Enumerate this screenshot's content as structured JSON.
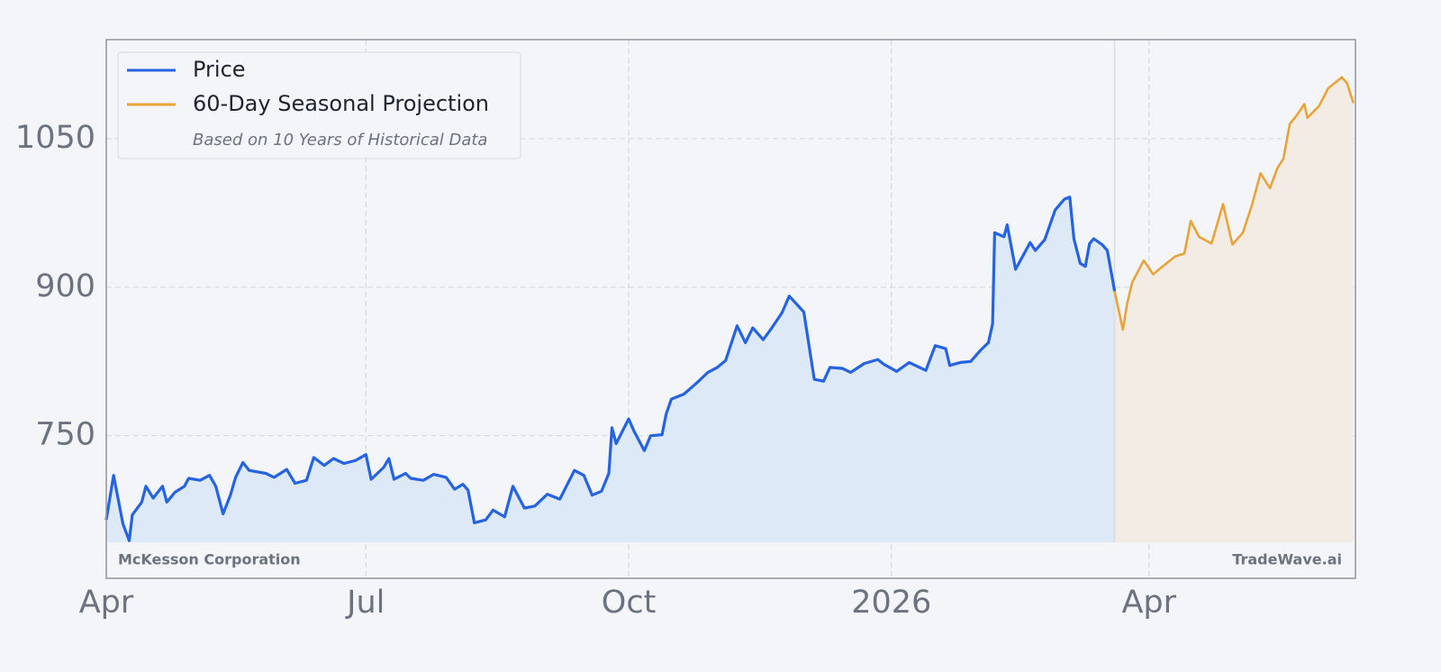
{
  "chart_data": {
    "type": "line",
    "legend": "upper left",
    "legend_note": "Based on 10 Years of Historical Data",
    "company": "McKesson Corporation",
    "watermark": "TradeWave.ai",
    "grid": true,
    "xlim": [
      2025.247,
      2026.445
    ],
    "xticks": [
      {
        "value": 2025.247,
        "label": "Apr"
      },
      {
        "value": 2025.496,
        "label": "Jul"
      },
      {
        "value": 2025.748,
        "label": "Oct"
      },
      {
        "value": 2026.0,
        "label": "2026"
      },
      {
        "value": 2026.247,
        "label": "Apr"
      }
    ],
    "ylim": [
      606,
      1150
    ],
    "yticks": [
      750,
      900,
      1050
    ],
    "series": [
      {
        "name": "Price",
        "color": "#2563e0",
        "fill": "#dde9f6",
        "x": [
          2025.247,
          2025.254,
          2025.263,
          2025.269,
          2025.272,
          2025.281,
          2025.285,
          2025.292,
          2025.301,
          2025.305,
          2025.313,
          2025.322,
          2025.326,
          2025.337,
          2025.346,
          2025.352,
          2025.359,
          2025.366,
          2025.371,
          2025.378,
          2025.384,
          2025.4,
          2025.408,
          2025.42,
          2025.428,
          2025.439,
          2025.446,
          2025.456,
          2025.465,
          2025.475,
          2025.486,
          2025.496,
          2025.501,
          2025.513,
          2025.518,
          2025.523,
          2025.534,
          2025.539,
          2025.551,
          2025.561,
          2025.573,
          2025.581,
          2025.589,
          2025.594,
          2025.6,
          2025.611,
          2025.618,
          2025.629,
          2025.637,
          2025.648,
          2025.658,
          2025.67,
          2025.682,
          2025.696,
          2025.705,
          2025.713,
          2025.722,
          2025.729,
          2025.732,
          2025.736,
          2025.748,
          2025.753,
          2025.763,
          2025.769,
          2025.78,
          2025.784,
          2025.789,
          2025.801,
          2025.814,
          2025.824,
          2025.833,
          2025.841,
          2025.852,
          2025.86,
          2025.867,
          2025.877,
          2025.884,
          2025.895,
          2025.902,
          2025.916,
          2025.922,
          2025.926,
          2025.935,
          2025.941,
          2025.953,
          2025.961,
          2025.974,
          2025.987,
          2025.993,
          2026.005,
          2026.017,
          2026.033,
          2026.042,
          2026.052,
          2026.056,
          2026.066,
          2026.076,
          2026.086,
          2026.093,
          2026.097,
          2026.099,
          2026.108,
          2026.111,
          2026.116,
          2026.119,
          2026.133,
          2026.138,
          2026.147,
          2026.157,
          2026.166,
          2026.171,
          2026.175,
          2026.181,
          2026.186,
          2026.19,
          2026.194,
          2026.202,
          2026.207,
          2026.214
        ],
        "values": [
          665,
          710,
          661,
          644,
          670,
          683,
          699,
          687,
          699,
          683,
          693,
          699,
          707,
          705,
          710,
          699,
          671,
          690,
          708,
          723,
          715,
          712,
          708,
          716,
          702,
          705,
          728,
          720,
          727,
          722,
          725,
          731,
          706,
          718,
          727,
          706,
          712,
          707,
          705,
          711,
          708,
          696,
          701,
          695,
          662,
          665,
          675,
          668,
          699,
          677,
          679,
          691,
          686,
          715,
          710,
          690,
          694,
          712,
          758,
          742,
          767,
          755,
          735,
          750,
          751,
          772,
          787,
          792,
          804,
          814,
          819,
          826,
          861,
          844,
          859,
          847,
          857,
          874,
          891,
          875,
          834,
          807,
          805,
          819,
          818,
          814,
          823,
          827,
          822,
          815,
          824,
          816,
          841,
          838,
          821,
          824,
          825,
          837,
          844,
          863,
          955,
          951,
          963,
          935,
          918,
          945,
          937,
          948,
          978,
          989,
          991,
          949,
          924,
          921,
          944,
          949,
          943,
          937,
          896
        ]
      },
      {
        "name": "60-Day Seasonal Projection",
        "color": "#e8a43a",
        "fill": "#f2ece4",
        "x": [
          2026.214,
          2026.222,
          2026.226,
          2026.231,
          2026.242,
          2026.251,
          2026.259,
          2026.272,
          2026.281,
          2026.287,
          2026.295,
          2026.307,
          2026.318,
          2026.327,
          2026.337,
          2026.346,
          2026.354,
          2026.363,
          2026.37,
          2026.376,
          2026.382,
          2026.389,
          2026.396,
          2026.399,
          2026.41,
          2026.419,
          2026.432,
          2026.437,
          2026.443
        ],
        "values": [
          896,
          857,
          883,
          905,
          927,
          913,
          920,
          931,
          934,
          967,
          951,
          944,
          984,
          943,
          955,
          984,
          1015,
          1000,
          1020,
          1030,
          1065,
          1074,
          1085,
          1071,
          1083,
          1101,
          1112,
          1106,
          1086
        ]
      }
    ]
  }
}
